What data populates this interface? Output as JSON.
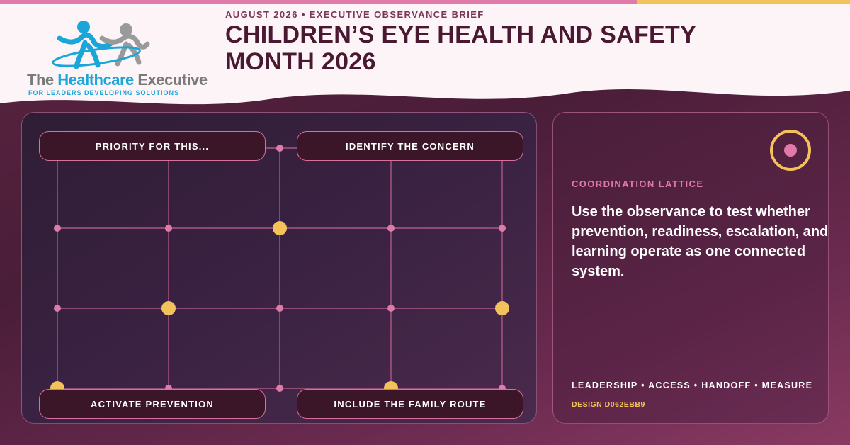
{
  "brand": {
    "logo_prefix": "The ",
    "logo_accent": "Healthcare",
    "logo_suffix": " Executive",
    "tagline": "FOR LEADERS DEVELOPING SOLUTIONS"
  },
  "header": {
    "kicker": "AUGUST 2026 • EXECUTIVE OBSERVANCE BRIEF",
    "title": "CHILDREN’S EYE HEALTH AND SAFETY MONTH 2026"
  },
  "lattice": {
    "pills": {
      "top_left": "PRIORITY FOR THIS...",
      "top_right": "IDENTIFY THE CONCERN",
      "bottom_left": "ACTIVATE PREVENTION",
      "bottom_right": "INCLUDE THE FAMILY ROUTE"
    }
  },
  "sidebar": {
    "label": "COORDINATION LATTICE",
    "body": "Use the observance to test whether prevention, readiness, escalation, and learning operate as one connected system.",
    "tags": "LEADERSHIP • ACCESS • HANDOFF • MEASURE",
    "design_code": "DESIGN D062EBB9"
  },
  "colors": {
    "pink": "#e07aa8",
    "gold": "#f3c25a",
    "title": "#4a1830",
    "panel_dark": "#2f1d35",
    "logo_blue": "#1aa6d9"
  },
  "icons": {
    "target": "target-icon",
    "logo": "figures-logo-icon"
  }
}
